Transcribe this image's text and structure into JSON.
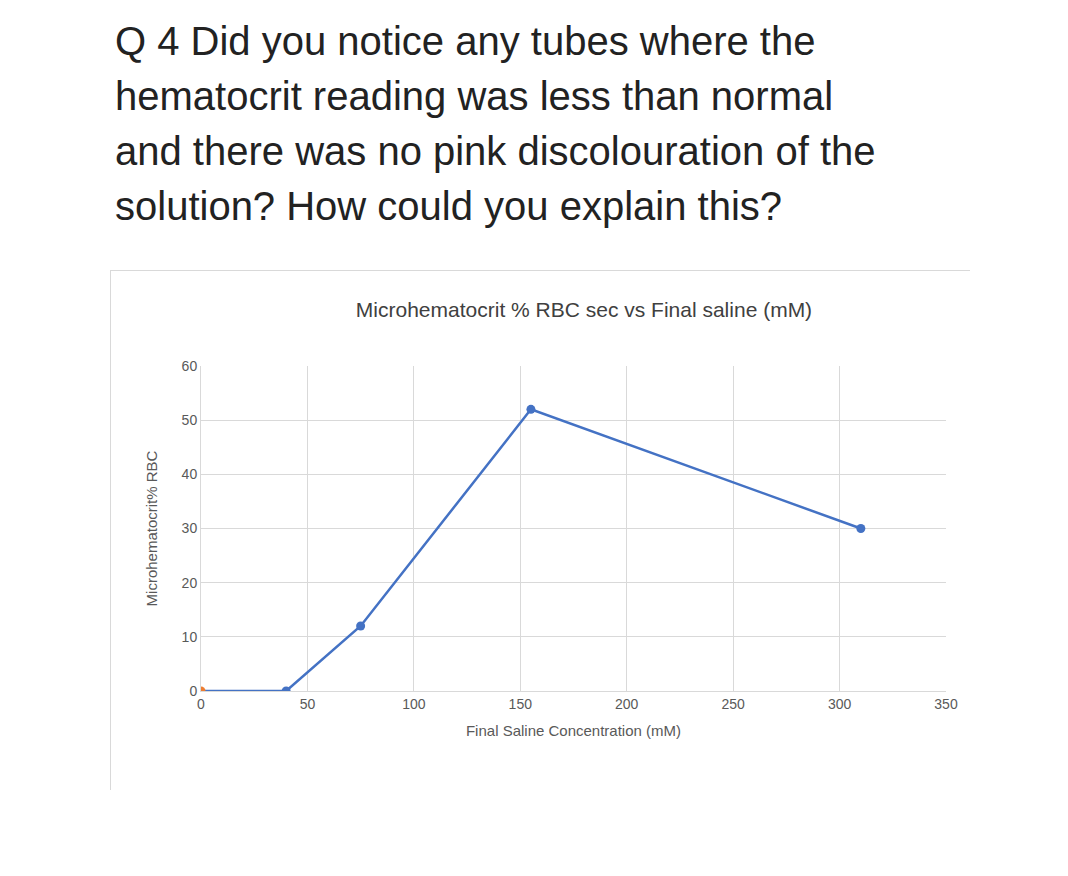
{
  "question": [
    "Q 4 Did you notice any tubes where the",
    "hematocrit reading was less than normal",
    "and there was no pink discolouration of the",
    "solution? How could you explain this?"
  ],
  "chart_data": {
    "type": "line",
    "title": "Microhematocrit % RBC sec vs Final saline (mM)",
    "x_label": "Final Saline Concentration (mM)",
    "y_label": "Microhematocrit% RBC",
    "x": [
      0,
      40,
      75,
      155,
      310
    ],
    "values": [
      0,
      0,
      12,
      52,
      30
    ],
    "color": "#4472c4",
    "colors": [
      "#ed7d31",
      "#4472c4",
      "#4472c4",
      "#4472c4",
      "#4472c4"
    ],
    "marker": "circle",
    "xlim": [
      0,
      350
    ],
    "xticks": [
      0,
      50,
      100,
      150,
      200,
      250,
      300,
      350
    ],
    "ylim": [
      0,
      60
    ],
    "yticks": [
      0,
      10,
      20,
      30,
      40,
      50,
      60
    ],
    "grid": true
  }
}
